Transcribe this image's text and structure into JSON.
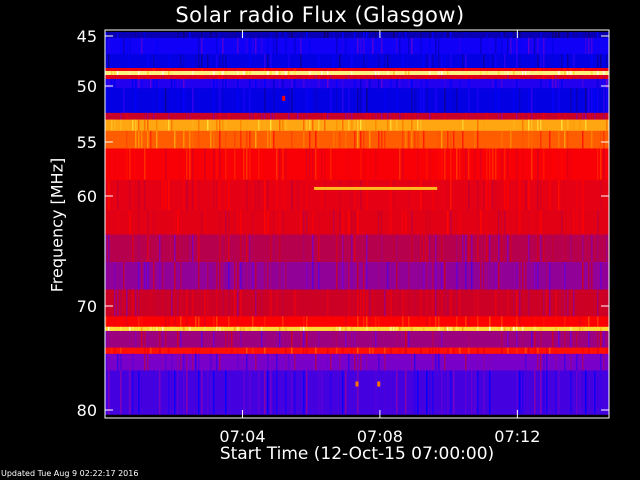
{
  "chart_data": {
    "type": "heatmap",
    "title": "Solar radio Flux (Glasgow)",
    "xlabel": "Start Time (12-Oct-15 07:00:00)",
    "ylabel": "Frequency [MHz]",
    "xlim": [
      "07:00:00",
      "07:14:40"
    ],
    "ylim": [
      45,
      80
    ],
    "y_inverted": true,
    "x_ticks": [
      "07:04",
      "07:08",
      "07:12"
    ],
    "y_ticks": [
      45,
      50,
      55,
      60,
      70,
      80
    ],
    "colormap": "blue-red-yellow-white",
    "intensity_bands": [
      {
        "freq_from": 44.6,
        "freq_to": 45.2,
        "level": 0.1
      },
      {
        "freq_from": 45.2,
        "freq_to": 46.8,
        "level": 0.2
      },
      {
        "freq_from": 46.8,
        "freq_to": 48.2,
        "level": 0.15
      },
      {
        "freq_from": 48.2,
        "freq_to": 48.5,
        "level": 0.55
      },
      {
        "freq_from": 48.5,
        "freq_to": 48.9,
        "level": 0.95
      },
      {
        "freq_from": 48.9,
        "freq_to": 49.3,
        "level": 0.5
      },
      {
        "freq_from": 49.3,
        "freq_to": 50.2,
        "level": 0.22
      },
      {
        "freq_from": 50.2,
        "freq_to": 52.4,
        "level": 0.15
      },
      {
        "freq_from": 52.4,
        "freq_to": 53.0,
        "level": 0.45
      },
      {
        "freq_from": 53.0,
        "freq_to": 54.0,
        "level": 0.82
      },
      {
        "freq_from": 54.0,
        "freq_to": 55.6,
        "level": 0.72
      },
      {
        "freq_from": 55.6,
        "freq_to": 58.5,
        "level": 0.58
      },
      {
        "freq_from": 58.5,
        "freq_to": 61.3,
        "level": 0.53
      },
      {
        "freq_from": 61.3,
        "freq_to": 63.5,
        "level": 0.52
      },
      {
        "freq_from": 63.5,
        "freq_to": 66.0,
        "level": 0.42
      },
      {
        "freq_from": 66.0,
        "freq_to": 68.5,
        "level": 0.36
      },
      {
        "freq_from": 68.5,
        "freq_to": 71.0,
        "level": 0.46
      },
      {
        "freq_from": 71.0,
        "freq_to": 72.0,
        "level": 0.6
      },
      {
        "freq_from": 72.0,
        "freq_to": 72.4,
        "level": 0.9
      },
      {
        "freq_from": 72.4,
        "freq_to": 74.0,
        "level": 0.38
      },
      {
        "freq_from": 74.0,
        "freq_to": 74.6,
        "level": 0.62
      },
      {
        "freq_from": 74.6,
        "freq_to": 76.2,
        "level": 0.32
      },
      {
        "freq_from": 76.2,
        "freq_to": 80.4,
        "level": 0.26
      }
    ],
    "features": [
      {
        "type": "line",
        "time_from": "07:06:05",
        "time_to": "07:09:40",
        "freq": 59.3,
        "level": 0.85
      },
      {
        "type": "dot",
        "time": "07:05:12",
        "freq": 51.1,
        "level": 0.6
      },
      {
        "type": "dot",
        "time": "07:07:20",
        "freq": 77.5,
        "level": 0.75
      },
      {
        "type": "dot",
        "time": "07:07:58",
        "freq": 77.5,
        "level": 0.75
      }
    ]
  },
  "footer": {
    "updated": "Updated Tue Aug  9 02:22:17 2016"
  }
}
